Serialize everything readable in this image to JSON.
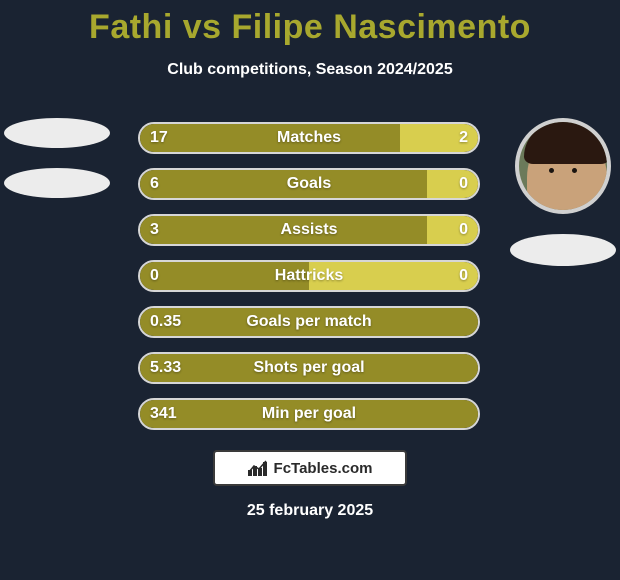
{
  "title": "Fathi vs Filipe Nascimento",
  "title_color": "#a8a82e",
  "subtitle": "Club competitions, Season 2024/2025",
  "background_color": "#1a2332",
  "colors": {
    "p1": "#948c27",
    "p2": "#d8ce4e",
    "border": "#d6d6d6",
    "text": "#ffffff"
  },
  "avatars": {
    "left": {
      "has_image": false
    },
    "right": {
      "has_image": true
    }
  },
  "bars": [
    {
      "name": "Matches",
      "v1": "17",
      "v2": "2",
      "p1_pct": 77,
      "p2_pct": 23
    },
    {
      "name": "Goals",
      "v1": "6",
      "v2": "0",
      "p1_pct": 85,
      "p2_pct": 15
    },
    {
      "name": "Assists",
      "v1": "3",
      "v2": "0",
      "p1_pct": 85,
      "p2_pct": 15
    },
    {
      "name": "Hattricks",
      "v1": "0",
      "v2": "0",
      "p1_pct": 50,
      "p2_pct": 50
    },
    {
      "name": "Goals per match",
      "v1": "0.35",
      "v2": "",
      "p1_pct": 100,
      "p2_pct": 0
    },
    {
      "name": "Shots per goal",
      "v1": "5.33",
      "v2": "",
      "p1_pct": 100,
      "p2_pct": 0
    },
    {
      "name": "Min per goal",
      "v1": "341",
      "v2": "",
      "p1_pct": 100,
      "p2_pct": 0
    }
  ],
  "bar_style": {
    "height": 32,
    "gap": 14,
    "radius": 16,
    "font_size": 16,
    "font_weight": 700
  },
  "brand": "FcTables.com",
  "date": "25 february 2025"
}
